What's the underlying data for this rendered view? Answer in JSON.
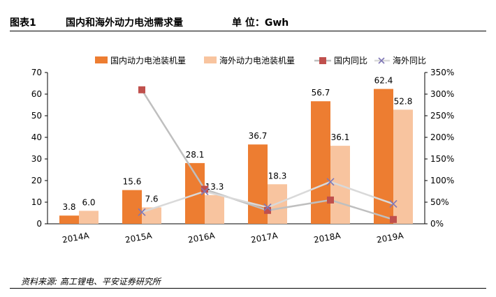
{
  "header": {
    "figure_no": "图表1",
    "title": "国内和海外动力电池需求量",
    "unit": "单 位：Gwh"
  },
  "source": "资料来源: 高工锂电、平安证券研究所",
  "colors": {
    "domestic_bar": "#ED7D31",
    "overseas_bar": "#F8C49F",
    "domestic_yoy": "#C0504D",
    "overseas_yoy": "#7F77B5",
    "domestic_yoy_line": "#BFBFBF",
    "overseas_yoy_line": "#D9D9D9"
  },
  "chart_data": {
    "type": "bar",
    "categories": [
      "2014A",
      "2015A",
      "2016A",
      "2017A",
      "2018A",
      "2019A"
    ],
    "series": [
      {
        "name": "国内动力电池装机量",
        "type": "bar",
        "axis": "left",
        "values": [
          3.8,
          15.6,
          28.1,
          36.7,
          56.7,
          62.4
        ],
        "labels": [
          "3.8",
          "15.6",
          "28.1",
          "36.7",
          "56.7",
          "62.4"
        ]
      },
      {
        "name": "海外动力电池装机量",
        "type": "bar",
        "axis": "left",
        "values": [
          6.0,
          7.6,
          13.3,
          18.3,
          36.1,
          52.8
        ],
        "labels": [
          "6.0",
          "7.6",
          "13.3",
          "18.3",
          "36.1",
          "52.8"
        ]
      },
      {
        "name": "国内同比",
        "type": "line",
        "axis": "right",
        "values": [
          null,
          3.1,
          0.8,
          0.31,
          0.55,
          0.1
        ]
      },
      {
        "name": "海外同比",
        "type": "line",
        "axis": "right",
        "values": [
          null,
          0.27,
          0.75,
          0.38,
          0.97,
          0.46
        ]
      }
    ],
    "left_axis": {
      "ylim": [
        0,
        70
      ],
      "ticks": [
        "0",
        "10",
        "20",
        "30",
        "40",
        "50",
        "60",
        "70"
      ]
    },
    "right_axis": {
      "ylim": [
        0,
        3.5
      ],
      "ticks": [
        "0%",
        "50%",
        "100%",
        "150%",
        "200%",
        "250%",
        "300%",
        "350%"
      ]
    },
    "legend_position": "top",
    "grid": false
  }
}
